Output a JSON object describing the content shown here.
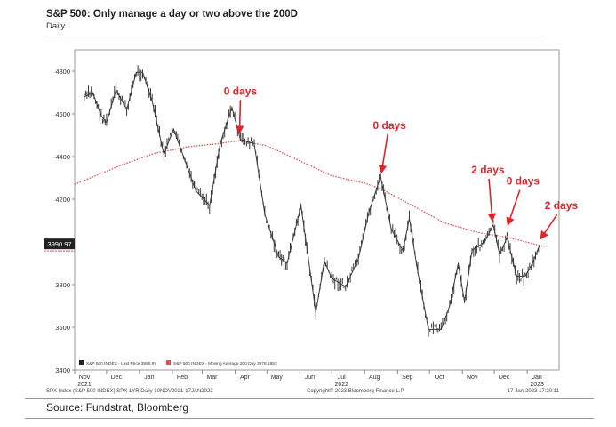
{
  "chart_data": {
    "type": "line",
    "title": "S&P 500: Only manage a day or two above the 200D",
    "subtitle": "Daily",
    "ylim": [
      3400,
      4900
    ],
    "yticks": [
      3400,
      3600,
      3800,
      4000,
      4200,
      4400,
      4600,
      4800
    ],
    "xlim": [
      "2021-11-01",
      "2023-01-31"
    ],
    "month_ticks": [
      {
        "label": "Nov",
        "year": "2021",
        "date": "2021-11-01"
      },
      {
        "label": "Dec",
        "year": "",
        "date": "2021-12-01"
      },
      {
        "label": "Jan",
        "year": "",
        "date": "2022-01-01"
      },
      {
        "label": "Feb",
        "year": "",
        "date": "2022-02-01"
      },
      {
        "label": "Mar",
        "year": "",
        "date": "2022-03-01"
      },
      {
        "label": "Apr",
        "year": "",
        "date": "2022-04-01"
      },
      {
        "label": "May",
        "year": "",
        "date": "2022-05-01"
      },
      {
        "label": "Jun",
        "year": "",
        "date": "2022-06-01"
      },
      {
        "label": "Jul",
        "year": "2022",
        "date": "2022-07-01"
      },
      {
        "label": "Aug",
        "year": "",
        "date": "2022-08-01"
      },
      {
        "label": "Sep",
        "year": "",
        "date": "2022-09-01"
      },
      {
        "label": "Oct",
        "year": "",
        "date": "2022-10-01"
      },
      {
        "label": "Nov",
        "year": "",
        "date": "2022-11-01"
      },
      {
        "label": "Dec",
        "year": "",
        "date": "2022-12-01"
      },
      {
        "label": "Jan",
        "year": "2023",
        "date": "2023-01-01"
      }
    ],
    "series": [
      {
        "name": "S&P 500 INDEX - Last Price 3990.97",
        "color": "#3a3a3a",
        "style": "bar",
        "x": [
          "2021-11-10",
          "2021-11-18",
          "2021-11-26",
          "2021-12-01",
          "2021-12-10",
          "2021-12-20",
          "2021-12-29",
          "2022-01-04",
          "2022-01-13",
          "2022-01-24",
          "2022-02-02",
          "2022-02-10",
          "2022-02-23",
          "2022-03-08",
          "2022-03-18",
          "2022-03-29",
          "2022-04-06",
          "2022-04-19",
          "2022-04-29",
          "2022-05-12",
          "2022-05-20",
          "2022-06-02",
          "2022-06-16",
          "2022-06-24",
          "2022-07-01",
          "2022-07-14",
          "2022-07-26",
          "2022-08-05",
          "2022-08-16",
          "2022-08-26",
          "2022-09-06",
          "2022-09-12",
          "2022-09-20",
          "2022-09-30",
          "2022-10-12",
          "2022-10-20",
          "2022-10-28",
          "2022-11-03",
          "2022-11-10",
          "2022-11-22",
          "2022-11-30",
          "2022-12-06",
          "2022-12-13",
          "2022-12-22",
          "2022-12-30",
          "2023-01-06",
          "2023-01-13"
        ],
        "values": [
          4680,
          4700,
          4590,
          4560,
          4712,
          4620,
          4795,
          4795,
          4660,
          4410,
          4530,
          4420,
          4240,
          4170,
          4460,
          4630,
          4480,
          4460,
          4130,
          3930,
          3900,
          4170,
          3670,
          3910,
          3830,
          3790,
          3920,
          4140,
          4305,
          4060,
          3960,
          4110,
          3860,
          3590,
          3590,
          3700,
          3900,
          3720,
          3960,
          4000,
          4080,
          3940,
          4020,
          3840,
          3840,
          3900,
          3990
        ]
      },
      {
        "name": "S&P 500 INDEX - Moving Average 200 Day 3978.1653",
        "color": "#d9534f",
        "style": "dotted",
        "x": [
          "2021-11-01",
          "2021-12-15",
          "2022-01-15",
          "2022-02-15",
          "2022-03-15",
          "2022-04-06",
          "2022-05-01",
          "2022-06-01",
          "2022-07-01",
          "2022-08-01",
          "2022-08-16",
          "2022-09-15",
          "2022-10-15",
          "2022-11-15",
          "2022-12-15",
          "2023-01-17"
        ],
        "values": [
          4270,
          4360,
          4415,
          4445,
          4460,
          4475,
          4450,
          4380,
          4310,
          4275,
          4250,
          4170,
          4090,
          4045,
          4020,
          3978
        ]
      }
    ],
    "last_price_tag": "3990.97",
    "annotations": [
      {
        "text": "0 days",
        "date": "2022-04-06",
        "value": 4490
      },
      {
        "text": "0 days",
        "date": "2022-08-16",
        "value": 4305
      },
      {
        "text": "2 days",
        "date": "2022-11-30",
        "value": 4080
      },
      {
        "text": "0 days",
        "date": "2022-12-13",
        "value": 4060
      },
      {
        "text": "2 days",
        "date": "2023-01-13",
        "value": 3995
      }
    ],
    "legend": {
      "position": "bottom-left",
      "items": [
        {
          "text": "S&P 500 INDEX - Last Price 3990.97",
          "color": "#222222"
        },
        {
          "text": "S&P 500 INDEX - Moving Average 200 Day 3978.1653",
          "color": "#d9534f"
        }
      ]
    },
    "footer_left": "SPX Index (S&P 500 INDEX) SPX 1YR  Daily 10NOV2021-17JAN2023",
    "footer_center": "Copyright© 2023 Bloomberg Finance L.P.",
    "footer_right": "17-Jan-2023 17:20:11",
    "grid": false
  },
  "source": "Source: Fundstrat, Bloomberg"
}
